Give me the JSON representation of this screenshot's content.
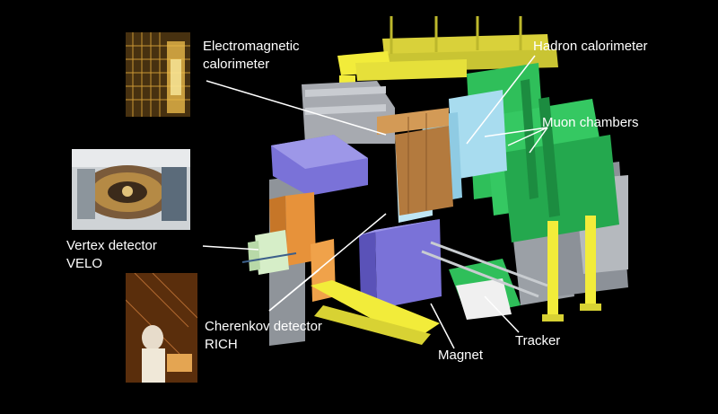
{
  "diagram": {
    "labels": {
      "electromagnetic_calorimeter": [
        "Electromagnetic",
        "calorimeter"
      ],
      "hadron_calorimeter": "Hadron calorimeter",
      "muon_chambers": "Muon chambers",
      "vertex_detector": [
        "Vertex detector",
        "VELO"
      ],
      "cherenkov_detector": [
        "Cherenkov detector",
        "RICH"
      ],
      "magnet": "Magnet",
      "tracker": "Tracker"
    },
    "photos": [
      "calorimeter-photo",
      "velo-photo",
      "rich-photo"
    ],
    "colors": {
      "background": "#000000",
      "yellow": "#f2ec3a",
      "purple": "#7a72d8",
      "orange": "#e7923a",
      "green": "#2fbf5a",
      "light_blue": "#a8dcef",
      "gray": "#a7aab0",
      "brown": "#b37a3e"
    }
  }
}
